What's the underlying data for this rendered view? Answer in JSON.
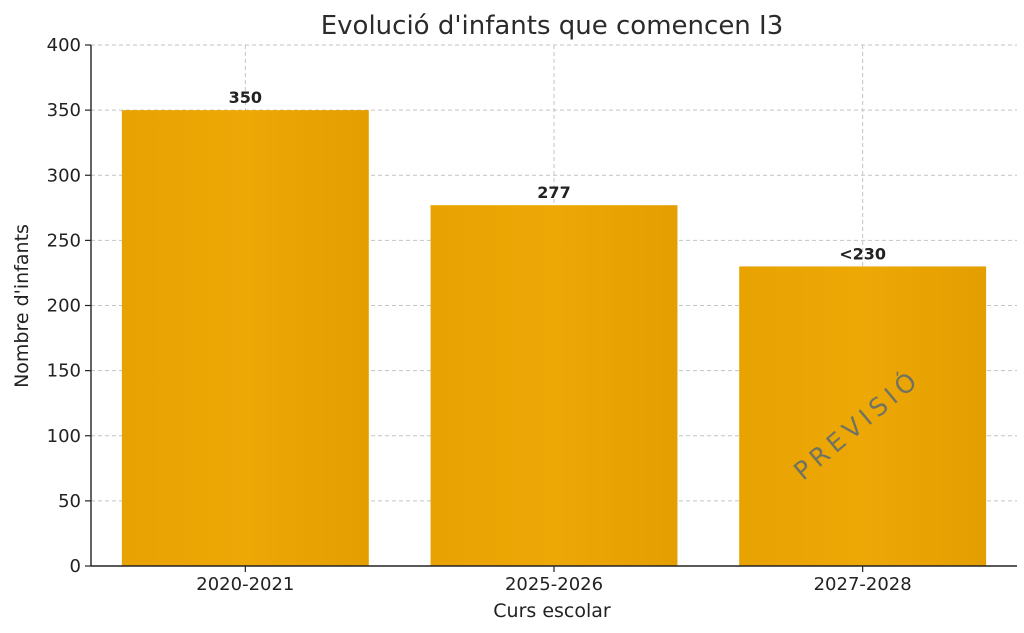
{
  "chart_data": {
    "type": "bar",
    "title": "Evolució d'infants que comencen I3",
    "xlabel": "Curs escolar",
    "ylabel": "Nombre d'infants",
    "categories": [
      "2020-2021",
      "2025-2026",
      "2027-2028"
    ],
    "values": [
      350,
      277,
      230
    ],
    "data_labels": [
      "350",
      "277",
      "<230"
    ],
    "ylim": [
      0,
      400
    ],
    "yticks": [
      0,
      50,
      100,
      150,
      200,
      250,
      300,
      350,
      400
    ],
    "grid": true,
    "bar_color": "#E8A202",
    "annotations": [
      {
        "text": "PREVISIÓ",
        "category": "2027-2028"
      }
    ]
  }
}
